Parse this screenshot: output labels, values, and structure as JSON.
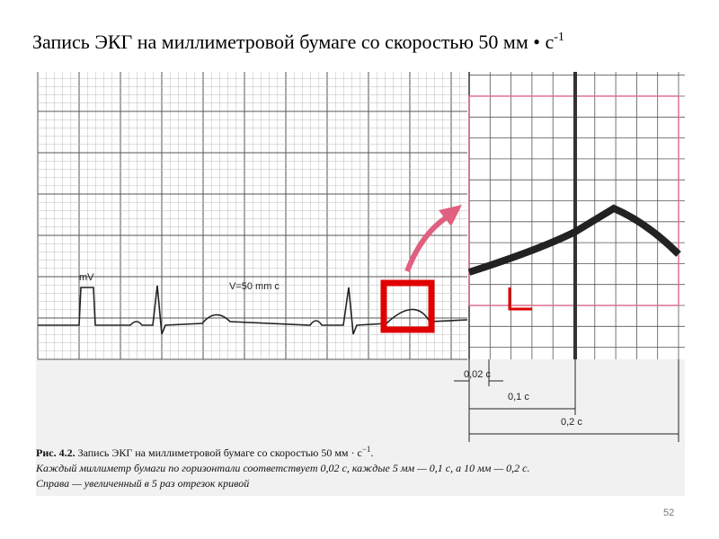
{
  "title": {
    "text": "Запись ЭКГ на миллиметровой бумаге со скоростью 50 мм • с",
    "superscript": "-1"
  },
  "figure": {
    "calibration_label": "mV",
    "speed_label": "V=50 mm c",
    "scale_small": "0,02 c",
    "scale_medium": "0,1 c",
    "scale_large": "0,2 c"
  },
  "caption": {
    "label": "Рис. 4.2.",
    "text": "Запись ЭКГ на миллиметровой бумаге со скоростью 50 мм · с",
    "superscript": "−1",
    "end": ".",
    "line2": "Каждый миллиметр бумаги по горизонтали соответствует 0,02 с, каждые 5 мм — 0,1 с, а 10 мм — 0,2 с.",
    "line3": "Справа — увеличенный в 5 раз отрезок кривой"
  },
  "page_number": "52"
}
